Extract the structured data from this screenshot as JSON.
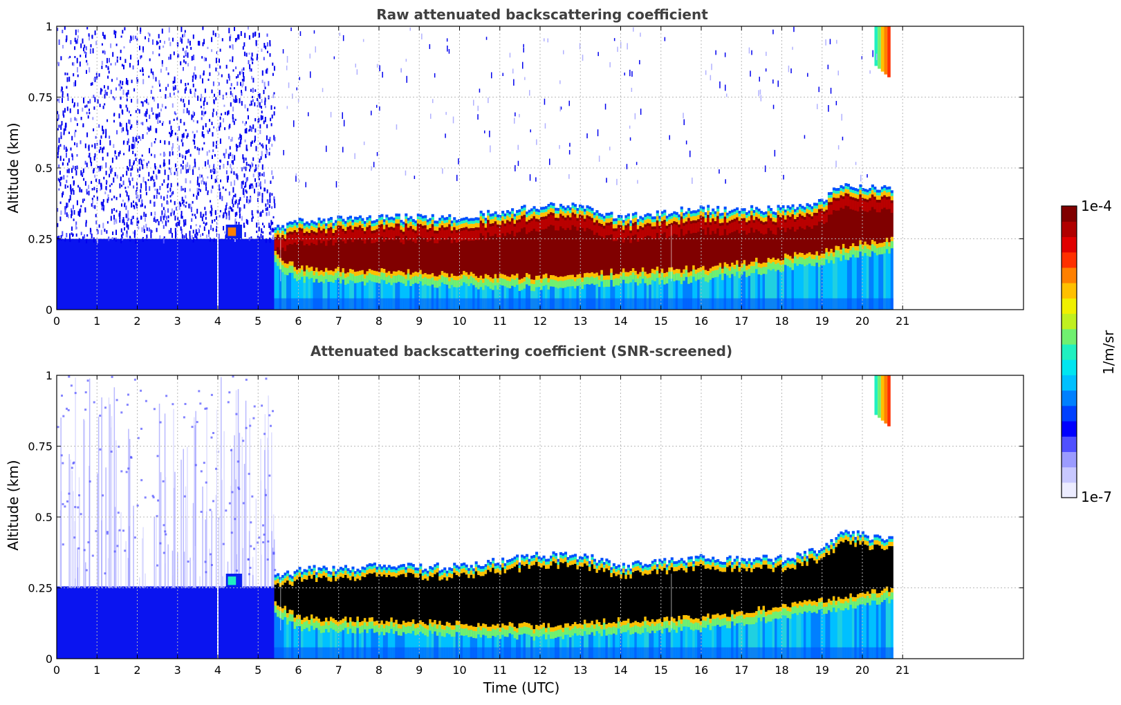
{
  "chart_data": [
    {
      "type": "heatmap",
      "title": "Raw attenuated backscattering coefficient",
      "xlabel": "",
      "ylabel": "Altitude (km)",
      "xlim": [
        0,
        24
      ],
      "ylim": [
        0,
        1
      ],
      "x_ticks": [
        0,
        1,
        2,
        3,
        4,
        5,
        6,
        7,
        8,
        9,
        10,
        11,
        12,
        13,
        14,
        15,
        16,
        17,
        18,
        19,
        20,
        21
      ],
      "y_ticks": [
        0,
        0.25,
        0.5,
        0.75,
        1
      ],
      "y_tick_labels": [
        "0",
        "0.25",
        "0.5",
        "0.75",
        "1"
      ],
      "grid": true,
      "data_end_hour": 20.7,
      "features": {
        "noise_until_hour": 5.4,
        "gap_hour": 4.0,
        "layer_start_hour": 5.4,
        "layer_bottom_km": [
          [
            5.4,
            0.18
          ],
          [
            6,
            0.13
          ],
          [
            8,
            0.12
          ],
          [
            10,
            0.11
          ],
          [
            12,
            0.1
          ],
          [
            14,
            0.12
          ],
          [
            16,
            0.13
          ],
          [
            18,
            0.17
          ],
          [
            19,
            0.19
          ],
          [
            20,
            0.22
          ],
          [
            20.7,
            0.23
          ]
        ],
        "layer_top_km": [
          [
            5.4,
            0.27
          ],
          [
            6,
            0.3
          ],
          [
            8,
            0.31
          ],
          [
            10,
            0.31
          ],
          [
            11,
            0.33
          ],
          [
            12,
            0.35
          ],
          [
            13,
            0.35
          ],
          [
            14,
            0.31
          ],
          [
            15,
            0.33
          ],
          [
            16,
            0.34
          ],
          [
            18,
            0.34
          ],
          [
            19,
            0.37
          ],
          [
            19.5,
            0.43
          ],
          [
            20,
            0.42
          ],
          [
            20.7,
            0.41
          ]
        ],
        "upper_cloud_km": [
          0.82,
          1.0
        ],
        "upper_cloud_hours": [
          20.3,
          20.7
        ]
      }
    },
    {
      "type": "heatmap",
      "title": "Attenuated backscattering coefficient (SNR-screened)",
      "xlabel": "Time (UTC)",
      "ylabel": "Altitude (km)",
      "xlim": [
        0,
        24
      ],
      "ylim": [
        0,
        1
      ],
      "x_ticks": [
        0,
        1,
        2,
        3,
        4,
        5,
        6,
        7,
        8,
        9,
        10,
        11,
        12,
        13,
        14,
        15,
        16,
        17,
        18,
        19,
        20,
        21
      ],
      "y_ticks": [
        0,
        0.25,
        0.5,
        0.75,
        1
      ],
      "y_tick_labels": [
        "0",
        "0.25",
        "0.5",
        "0.75",
        "1"
      ],
      "grid": true,
      "data_end_hour": 20.7,
      "features": {
        "saturated_color": "#000000",
        "noise_until_hour": 5.4,
        "gap_hour": 4.0,
        "layer_start_hour": 5.4
      }
    }
  ],
  "colorbar": {
    "label": "1/m/sr",
    "min_label": "1e-7",
    "max_label": "1e-4",
    "colors": [
      "#ececff",
      "#c8c8ff",
      "#9b9bff",
      "#5050ff",
      "#0000ff",
      "#0040ff",
      "#0080ff",
      "#00c0ff",
      "#00e5f0",
      "#20f0c0",
      "#70f070",
      "#c0f020",
      "#f0f000",
      "#ffc000",
      "#ff8000",
      "#ff3000",
      "#e00000",
      "#b00000",
      "#800000"
    ]
  }
}
